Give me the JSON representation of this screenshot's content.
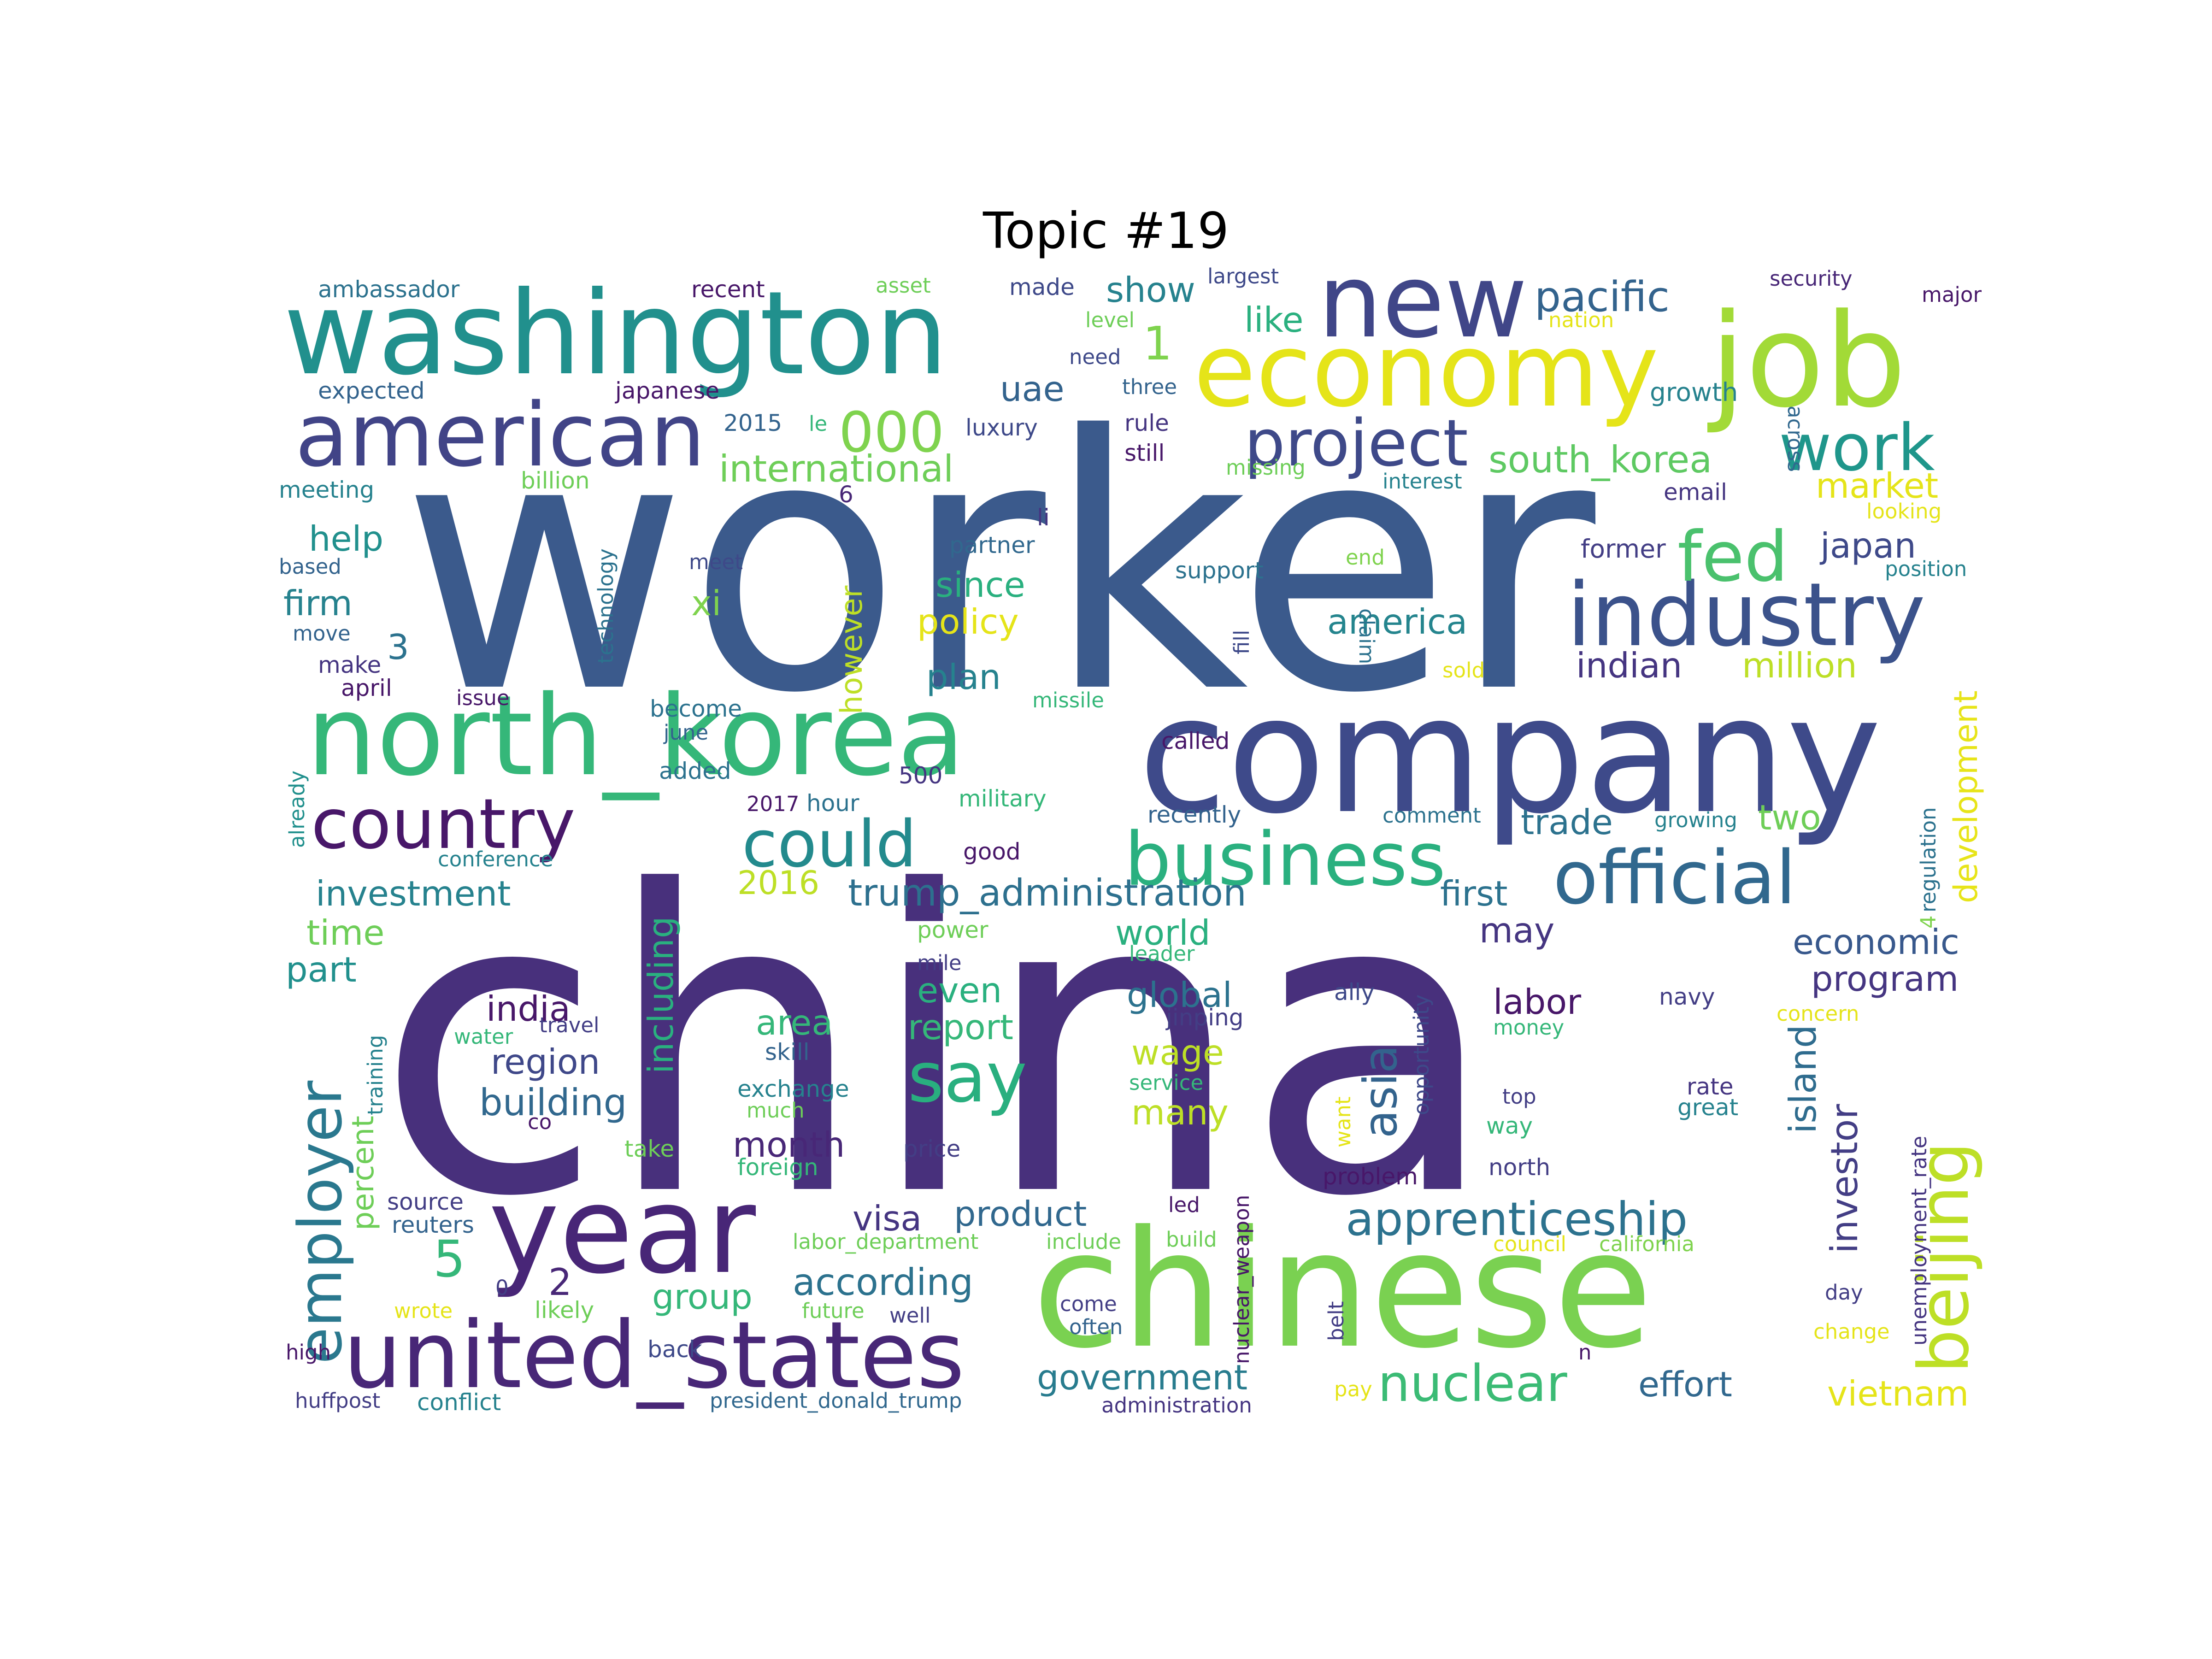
{
  "title": "Topic #19",
  "words": [
    {
      "text": "worker",
      "color": "#3b5a8c"
    },
    {
      "text": "china",
      "color": "#48307c"
    },
    {
      "text": "company",
      "color": "#3e4a8a"
    },
    {
      "text": "chinese",
      "color": "#7ad151"
    },
    {
      "text": "washington",
      "color": "#21908d"
    },
    {
      "text": "job",
      "color": "#a2da37"
    },
    {
      "text": "north_korea",
      "color": "#35b779"
    },
    {
      "text": "year",
      "color": "#482677"
    },
    {
      "text": "economy",
      "color": "#e5e419"
    },
    {
      "text": "new",
      "color": "#404688"
    },
    {
      "text": "united_states",
      "color": "#482777"
    },
    {
      "text": "american",
      "color": "#414487"
    },
    {
      "text": "industry",
      "color": "#3b528b"
    },
    {
      "text": "business",
      "color": "#2ab07f"
    },
    {
      "text": "official",
      "color": "#31688e"
    },
    {
      "text": "country",
      "color": "#481769"
    },
    {
      "text": "project",
      "color": "#3e4989"
    },
    {
      "text": "beijing",
      "color": "#bddf26"
    },
    {
      "text": "could",
      "color": "#238a8d"
    },
    {
      "text": "work",
      "color": "#1f968b"
    },
    {
      "text": "employer",
      "color": "#2a788e"
    },
    {
      "text": "say",
      "color": "#29af7f"
    },
    {
      "text": "fed",
      "color": "#4ac16d"
    },
    {
      "text": "apprenticeship",
      "color": "#2c728e"
    },
    {
      "text": "asia",
      "color": "#33638d"
    },
    {
      "text": "nuclear",
      "color": "#3bbb75"
    },
    {
      "text": "000",
      "color": "#7fd34e"
    },
    {
      "text": "south_korea",
      "color": "#5ec962"
    },
    {
      "text": "trump_administration",
      "color": "#2d708e"
    },
    {
      "text": "pacific",
      "color": "#33638d"
    },
    {
      "text": "international",
      "color": "#6ece58"
    },
    {
      "text": "investor",
      "color": "#433e85"
    },
    {
      "text": "development",
      "color": "#e7e419"
    },
    {
      "text": "island",
      "color": "#2f6c8e"
    },
    {
      "text": "including",
      "color": "#2ab07f"
    },
    {
      "text": "economic",
      "color": "#38588c"
    },
    {
      "text": "according",
      "color": "#2c728e"
    },
    {
      "text": "government",
      "color": "#287c8e"
    },
    {
      "text": "program",
      "color": "#453581"
    },
    {
      "text": "region",
      "color": "#3f4889"
    },
    {
      "text": "building",
      "color": "#31688e"
    },
    {
      "text": "investment",
      "color": "#26828e"
    },
    {
      "text": "america",
      "color": "#25858e"
    },
    {
      "text": "industry",
      "color": "#3b528b"
    },
    {
      "text": "industry",
      "color": "#3b528b"
    }
  ],
  "small_words": [
    "ambassador",
    "recent",
    "asset",
    "made",
    "show",
    "largest",
    "security",
    "major",
    "nation",
    "across",
    "expected",
    "japanese",
    "2015",
    "le",
    "luxury",
    "three",
    "need",
    "level",
    "rule",
    "still",
    "growth",
    "meeting",
    "billion",
    "missing",
    "interest",
    "email",
    "looking",
    "6",
    "li",
    "partner",
    "former",
    "position",
    "based",
    "meet",
    "support",
    "end",
    "claim",
    "move",
    "technology",
    "fill",
    "sold",
    "make",
    "april",
    "issue",
    "missile",
    "become",
    "june",
    "called",
    "already",
    "added",
    "500",
    "2017",
    "hour",
    "military",
    "recently",
    "comment",
    "growing",
    "regulation",
    "conference",
    "good",
    "power",
    "mile",
    "leader",
    "ally",
    "navy",
    "concern",
    "money",
    "water",
    "travel",
    "jinping",
    "opportunity",
    "skill",
    "exchange",
    "much",
    "service",
    "want",
    "rate",
    "great",
    "top",
    "way",
    "training",
    "co",
    "take",
    "price",
    "foreign",
    "problem",
    "north",
    "unemployment_rate",
    "source",
    "reuters",
    "led",
    "nuclear_weapon",
    "labor_department",
    "include",
    "build",
    "council",
    "california",
    "wrote",
    "likely",
    "future",
    "well",
    "come",
    "often",
    "belt",
    "day",
    "change",
    "high",
    "back",
    "n",
    "huffpost",
    "conflict",
    "president_donald_trump",
    "administration",
    "pay",
    "xi",
    "uae",
    "1",
    "like",
    "plan",
    "policy",
    "since",
    "however",
    "firm",
    "help",
    "3",
    "time",
    "part",
    "percent",
    "2016",
    "india",
    "area",
    "report",
    "even",
    "month",
    "visa",
    "product",
    "group",
    "5",
    "2",
    "0",
    "global",
    "wage",
    "many",
    "labor",
    "world",
    "may",
    "first",
    "trade",
    "two",
    "indian",
    "million",
    "japan",
    "market",
    "vietnam",
    "effort",
    "4"
  ]
}
